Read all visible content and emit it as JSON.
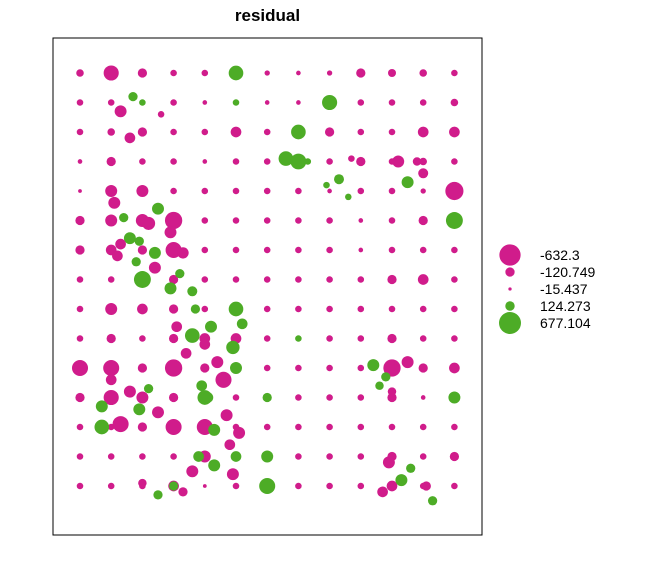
{
  "chart_data": {
    "type": "scatter",
    "title": "residual",
    "xlabel": "",
    "ylabel": "",
    "grid": false,
    "legend_position": "right",
    "colors": {
      "negative": "#d01c8b",
      "positive": "#4dac26",
      "frame": "#000000"
    },
    "legend": [
      {
        "label": "-632.3",
        "value": -632.3
      },
      {
        "label": "-120.749",
        "value": -120.749
      },
      {
        "label": "-15.437",
        "value": -15.437
      },
      {
        "label": "124.273",
        "value": 124.273
      },
      {
        "label": "677.104",
        "value": 677.104
      }
    ],
    "points": [
      [
        1,
        1,
        -80
      ],
      [
        2,
        1,
        -320
      ],
      [
        3,
        1,
        -120
      ],
      [
        4,
        1,
        -60
      ],
      [
        5,
        1,
        -60
      ],
      [
        6,
        1,
        300
      ],
      [
        7,
        1,
        -40
      ],
      [
        8,
        1,
        -30
      ],
      [
        9,
        1,
        -40
      ],
      [
        10,
        1,
        -120
      ],
      [
        11,
        1,
        -90
      ],
      [
        12,
        1,
        -80
      ],
      [
        13,
        1,
        -60
      ],
      [
        1,
        2,
        -60
      ],
      [
        2,
        2,
        -60
      ],
      [
        3,
        2,
        60
      ],
      [
        4,
        2,
        -60
      ],
      [
        5,
        2,
        -30
      ],
      [
        6,
        2,
        60
      ],
      [
        7,
        2,
        -30
      ],
      [
        8,
        2,
        -30
      ],
      [
        9,
        2,
        320
      ],
      [
        10,
        2,
        -60
      ],
      [
        11,
        2,
        -60
      ],
      [
        12,
        2,
        -60
      ],
      [
        13,
        2,
        -80
      ],
      [
        1,
        3,
        -60
      ],
      [
        2,
        3,
        -80
      ],
      [
        3,
        3,
        -120
      ],
      [
        4,
        3,
        -60
      ],
      [
        5,
        3,
        -60
      ],
      [
        6,
        3,
        -160
      ],
      [
        7,
        3,
        -60
      ],
      [
        8,
        3,
        300
      ],
      [
        9,
        3,
        -120
      ],
      [
        10,
        3,
        -60
      ],
      [
        11,
        3,
        -60
      ],
      [
        12,
        3,
        -160
      ],
      [
        13,
        3,
        -160
      ],
      [
        1,
        4,
        -30
      ],
      [
        2,
        4,
        -120
      ],
      [
        3,
        4,
        -60
      ],
      [
        4,
        4,
        -60
      ],
      [
        5,
        4,
        -30
      ],
      [
        6,
        4,
        -60
      ],
      [
        7,
        4,
        -60
      ],
      [
        8,
        4,
        350
      ],
      [
        9,
        4,
        -60
      ],
      [
        10,
        4,
        -120
      ],
      [
        11,
        4,
        -60
      ],
      [
        12,
        4,
        -80
      ],
      [
        13,
        4,
        -60
      ],
      [
        1,
        5,
        -20
      ],
      [
        2,
        5,
        -200
      ],
      [
        3,
        5,
        -200
      ],
      [
        4,
        5,
        -60
      ],
      [
        5,
        5,
        -60
      ],
      [
        6,
        5,
        -60
      ],
      [
        7,
        5,
        -60
      ],
      [
        8,
        5,
        -60
      ],
      [
        9,
        5,
        -30
      ],
      [
        10,
        5,
        -60
      ],
      [
        11,
        5,
        -60
      ],
      [
        12,
        5,
        -40
      ],
      [
        13,
        5,
        -460
      ],
      [
        1,
        6,
        -120
      ],
      [
        2,
        6,
        -200
      ],
      [
        3,
        6,
        -240
      ],
      [
        4,
        6,
        -420
      ],
      [
        5,
        6,
        -60
      ],
      [
        6,
        6,
        -60
      ],
      [
        7,
        6,
        -60
      ],
      [
        8,
        6,
        -60
      ],
      [
        9,
        6,
        -60
      ],
      [
        10,
        6,
        -30
      ],
      [
        11,
        6,
        -60
      ],
      [
        12,
        6,
        -120
      ],
      [
        13,
        6,
        400
      ],
      [
        1,
        7,
        -120
      ],
      [
        2,
        7,
        -160
      ],
      [
        3,
        7,
        -120
      ],
      [
        4,
        7,
        -360
      ],
      [
        5,
        7,
        -60
      ],
      [
        6,
        7,
        -60
      ],
      [
        7,
        7,
        -60
      ],
      [
        8,
        7,
        -60
      ],
      [
        9,
        7,
        -60
      ],
      [
        10,
        7,
        -30
      ],
      [
        11,
        7,
        -60
      ],
      [
        12,
        7,
        -60
      ],
      [
        13,
        7,
        -60
      ],
      [
        1,
        8,
        -60
      ],
      [
        2,
        8,
        -60
      ],
      [
        3,
        8,
        400
      ],
      [
        4,
        8,
        -120
      ],
      [
        5,
        8,
        -60
      ],
      [
        6,
        8,
        -60
      ],
      [
        7,
        8,
        -60
      ],
      [
        8,
        8,
        -60
      ],
      [
        9,
        8,
        -60
      ],
      [
        10,
        8,
        -60
      ],
      [
        11,
        8,
        -120
      ],
      [
        12,
        8,
        -160
      ],
      [
        13,
        8,
        -60
      ],
      [
        1,
        9,
        -60
      ],
      [
        2,
        9,
        -200
      ],
      [
        3,
        9,
        -160
      ],
      [
        4,
        9,
        -120
      ],
      [
        5,
        9,
        -60
      ],
      [
        6,
        9,
        300
      ],
      [
        7,
        9,
        -60
      ],
      [
        8,
        9,
        -60
      ],
      [
        9,
        9,
        -60
      ],
      [
        10,
        9,
        -60
      ],
      [
        11,
        9,
        -60
      ],
      [
        12,
        9,
        -60
      ],
      [
        13,
        9,
        -60
      ],
      [
        1,
        10,
        -60
      ],
      [
        2,
        10,
        -120
      ],
      [
        3,
        10,
        -60
      ],
      [
        4,
        10,
        -120
      ],
      [
        5,
        10,
        -160
      ],
      [
        6,
        10,
        -160
      ],
      [
        7,
        10,
        -60
      ],
      [
        8,
        10,
        60
      ],
      [
        9,
        10,
        -60
      ],
      [
        10,
        10,
        -60
      ],
      [
        11,
        10,
        -120
      ],
      [
        12,
        10,
        -60
      ],
      [
        13,
        10,
        -60
      ],
      [
        1,
        11,
        -360
      ],
      [
        2,
        11,
        -360
      ],
      [
        3,
        11,
        -120
      ],
      [
        4,
        11,
        -420
      ],
      [
        5,
        11,
        -120
      ],
      [
        6,
        11,
        -60
      ],
      [
        7,
        11,
        -60
      ],
      [
        8,
        11,
        -60
      ],
      [
        9,
        11,
        -60
      ],
      [
        10,
        11,
        -60
      ],
      [
        11,
        11,
        -420
      ],
      [
        12,
        11,
        -120
      ],
      [
        13,
        11,
        -160
      ],
      [
        1,
        12,
        -120
      ],
      [
        2,
        12,
        -320
      ],
      [
        3,
        12,
        -200
      ],
      [
        4,
        12,
        -120
      ],
      [
        5,
        12,
        300
      ],
      [
        6,
        12,
        -60
      ],
      [
        7,
        12,
        120
      ],
      [
        8,
        12,
        -60
      ],
      [
        9,
        12,
        -60
      ],
      [
        10,
        12,
        -60
      ],
      [
        11,
        12,
        -120
      ],
      [
        12,
        12,
        -30
      ],
      [
        13,
        12,
        200
      ],
      [
        1,
        13,
        -60
      ],
      [
        2,
        13,
        -60
      ],
      [
        3,
        13,
        -120
      ],
      [
        4,
        13,
        -360
      ],
      [
        5,
        13,
        -360
      ],
      [
        6,
        13,
        -60
      ],
      [
        7,
        13,
        -60
      ],
      [
        8,
        13,
        -60
      ],
      [
        9,
        13,
        -60
      ],
      [
        10,
        13,
        -60
      ],
      [
        11,
        13,
        -60
      ],
      [
        12,
        13,
        -60
      ],
      [
        13,
        13,
        -60
      ],
      [
        1,
        14,
        -60
      ],
      [
        2,
        14,
        -60
      ],
      [
        3,
        14,
        -60
      ],
      [
        4,
        14,
        -60
      ],
      [
        5,
        14,
        -200
      ],
      [
        6,
        14,
        160
      ],
      [
        7,
        14,
        200
      ],
      [
        8,
        14,
        -60
      ],
      [
        9,
        14,
        -60
      ],
      [
        10,
        14,
        -60
      ],
      [
        11,
        14,
        -120
      ],
      [
        12,
        14,
        -60
      ],
      [
        13,
        14,
        -120
      ],
      [
        1,
        15,
        -60
      ],
      [
        2,
        15,
        -60
      ],
      [
        3,
        15,
        -60
      ],
      [
        4,
        15,
        -160
      ],
      [
        5,
        15,
        -20
      ],
      [
        6,
        15,
        -60
      ],
      [
        7,
        15,
        360
      ],
      [
        8,
        15,
        -60
      ],
      [
        9,
        15,
        -60
      ],
      [
        10,
        15,
        -60
      ],
      [
        11,
        15,
        -160
      ],
      [
        12,
        15,
        -60
      ],
      [
        13,
        15,
        -60
      ],
      [
        2.3,
        2.3,
        -200
      ],
      [
        2.7,
        1.8,
        120
      ],
      [
        3.6,
        2.4,
        -60
      ],
      [
        2.6,
        3.2,
        -160
      ],
      [
        7.6,
        3.9,
        300
      ],
      [
        8.3,
        4.0,
        60
      ],
      [
        9.3,
        4.6,
        140
      ],
      [
        9.7,
        3.9,
        -60
      ],
      [
        8.9,
        4.8,
        60
      ],
      [
        9.6,
        5.2,
        60
      ],
      [
        11.2,
        4.0,
        -200
      ],
      [
        11.5,
        4.7,
        200
      ],
      [
        12.0,
        4.4,
        -140
      ],
      [
        11.8,
        4.0,
        -100
      ],
      [
        2.1,
        5.4,
        -200
      ],
      [
        2.4,
        5.9,
        120
      ],
      [
        2.6,
        6.6,
        200
      ],
      [
        3.2,
        6.1,
        -240
      ],
      [
        3.5,
        5.6,
        200
      ],
      [
        3.9,
        6.4,
        -200
      ],
      [
        2.2,
        7.2,
        -160
      ],
      [
        2.8,
        7.4,
        120
      ],
      [
        3.4,
        7.6,
        -200
      ],
      [
        4.3,
        7.1,
        -180
      ],
      [
        3.9,
        8.3,
        200
      ],
      [
        4.6,
        8.4,
        140
      ],
      [
        4.2,
        7.8,
        120
      ],
      [
        2.3,
        6.8,
        -160
      ],
      [
        2.9,
        6.7,
        120
      ],
      [
        3.4,
        7.1,
        200
      ],
      [
        4.7,
        9.0,
        120
      ],
      [
        4.1,
        9.6,
        -160
      ],
      [
        4.6,
        9.9,
        300
      ],
      [
        5.2,
        9.6,
        200
      ],
      [
        5.0,
        10.2,
        -160
      ],
      [
        5.9,
        10.3,
        250
      ],
      [
        6.2,
        9.5,
        160
      ],
      [
        5.4,
        10.8,
        -200
      ],
      [
        4.4,
        10.5,
        -160
      ],
      [
        6.0,
        11.0,
        200
      ],
      [
        5.6,
        11.4,
        -360
      ],
      [
        4.9,
        11.6,
        160
      ],
      [
        2.0,
        11.4,
        -160
      ],
      [
        2.6,
        11.8,
        -200
      ],
      [
        1.7,
        12.3,
        200
      ],
      [
        2.9,
        12.4,
        200
      ],
      [
        2.3,
        12.9,
        -360
      ],
      [
        1.7,
        13.0,
        300
      ],
      [
        3.2,
        11.7,
        120
      ],
      [
        3.5,
        12.5,
        -200
      ],
      [
        5.1,
        12.0,
        160
      ],
      [
        5.7,
        12.6,
        -200
      ],
      [
        5.3,
        13.1,
        200
      ],
      [
        6.1,
        13.2,
        -200
      ],
      [
        5.8,
        13.6,
        -160
      ],
      [
        4.8,
        14.0,
        160
      ],
      [
        5.3,
        14.3,
        200
      ],
      [
        4.6,
        14.5,
        -200
      ],
      [
        5.9,
        14.6,
        -200
      ],
      [
        4.3,
        15.2,
        -120
      ],
      [
        4.0,
        15.0,
        120
      ],
      [
        3.0,
        14.9,
        -100
      ],
      [
        3.5,
        15.3,
        120
      ],
      [
        10.4,
        10.9,
        200
      ],
      [
        10.8,
        11.3,
        120
      ],
      [
        11.0,
        11.8,
        -100
      ],
      [
        10.6,
        11.6,
        100
      ],
      [
        11.5,
        10.8,
        -200
      ],
      [
        10.9,
        14.2,
        -200
      ],
      [
        11.3,
        14.8,
        200
      ],
      [
        12.1,
        15.0,
        -120
      ],
      [
        11.6,
        14.4,
        120
      ],
      [
        10.7,
        15.2,
        -160
      ],
      [
        12.3,
        15.5,
        120
      ]
    ]
  }
}
